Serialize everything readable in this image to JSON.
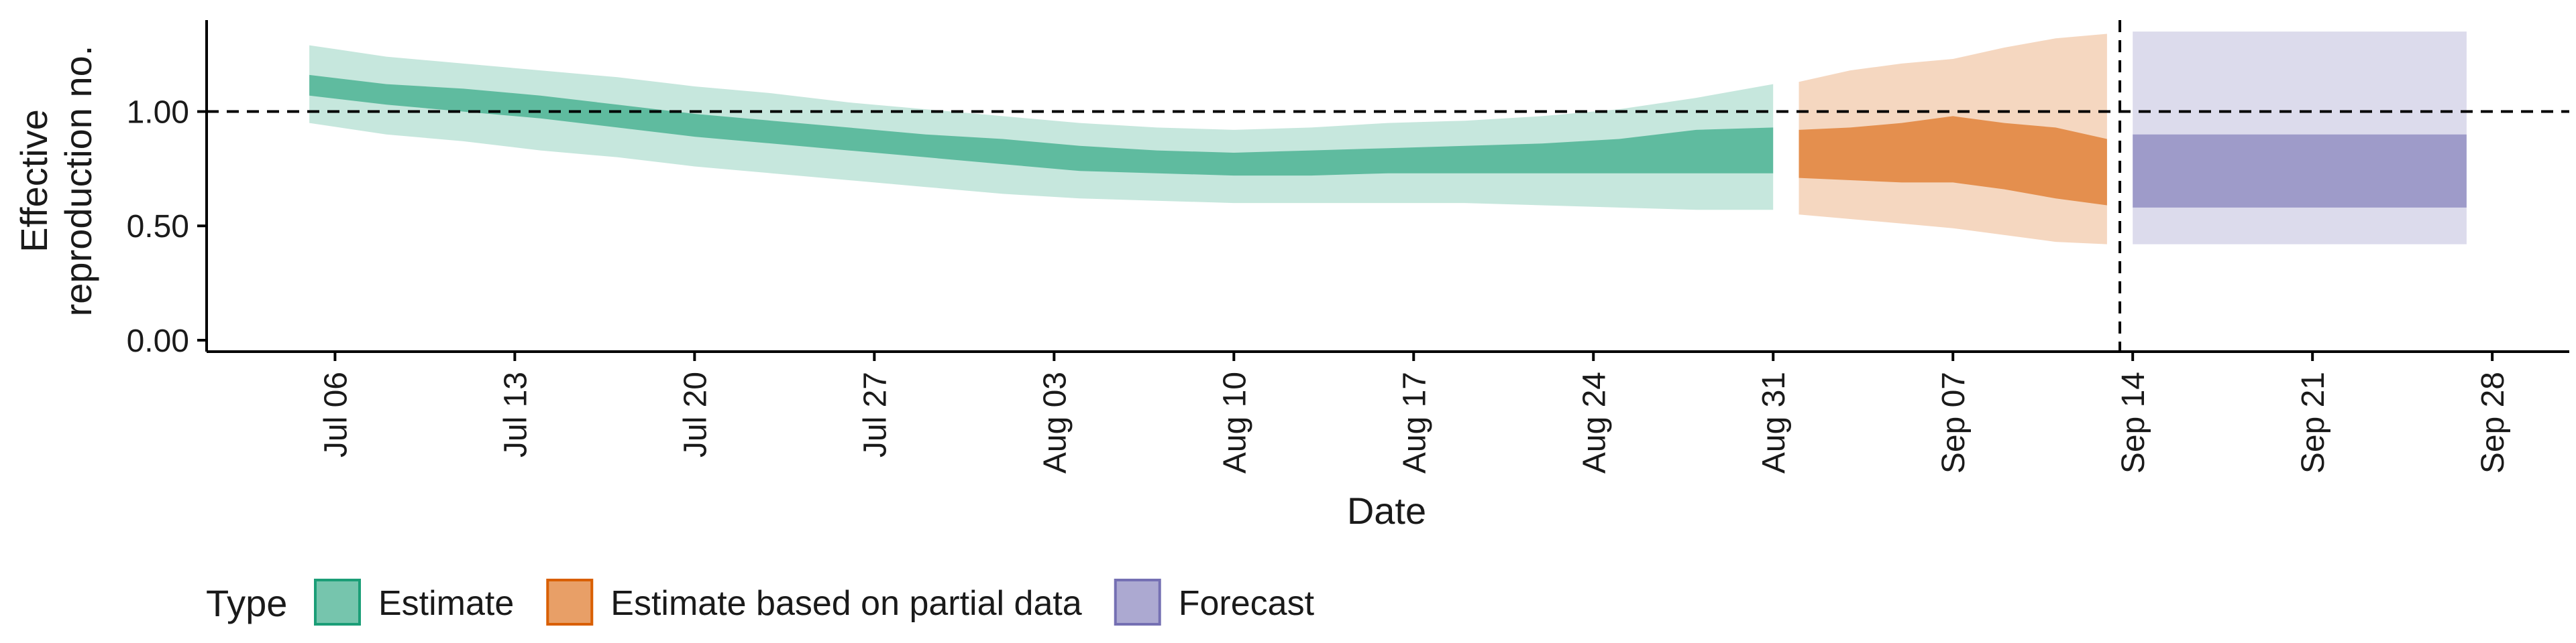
{
  "chart_data": {
    "type": "area",
    "xlabel": "Date",
    "ylabel_lines": [
      "Effective",
      "reproduction no."
    ],
    "yticks": [
      {
        "value": 0.0,
        "label": "0.00"
      },
      {
        "value": 0.5,
        "label": "0.50"
      },
      {
        "value": 1.0,
        "label": "1.00"
      }
    ],
    "ylim": [
      -0.05,
      1.4
    ],
    "xlim": [
      "2020-07-01",
      "2020-10-01"
    ],
    "xticks": [
      {
        "date": "2020-07-06",
        "label": "Jul 06"
      },
      {
        "date": "2020-07-13",
        "label": "Jul 13"
      },
      {
        "date": "2020-07-20",
        "label": "Jul 20"
      },
      {
        "date": "2020-07-27",
        "label": "Jul 27"
      },
      {
        "date": "2020-08-03",
        "label": "Aug 03"
      },
      {
        "date": "2020-08-10",
        "label": "Aug 10"
      },
      {
        "date": "2020-08-17",
        "label": "Aug 17"
      },
      {
        "date": "2020-08-24",
        "label": "Aug 24"
      },
      {
        "date": "2020-08-31",
        "label": "Aug 31"
      },
      {
        "date": "2020-09-07",
        "label": "Sep 07"
      },
      {
        "date": "2020-09-14",
        "label": "Sep 14"
      },
      {
        "date": "2020-09-21",
        "label": "Sep 21"
      },
      {
        "date": "2020-09-28",
        "label": "Sep 28"
      }
    ],
    "reference_line_y": 1.0,
    "vertical_line_date": "2020-09-13",
    "legend_title": "Type",
    "legend_position": "bottom",
    "series": [
      {
        "name": "Estimate",
        "color": "#1b9e77",
        "inner_opacity": 0.6,
        "outer_opacity": 0.25,
        "dates": [
          "2020-07-05",
          "2020-07-08",
          "2020-07-11",
          "2020-07-14",
          "2020-07-17",
          "2020-07-20",
          "2020-07-23",
          "2020-07-26",
          "2020-07-29",
          "2020-08-01",
          "2020-08-04",
          "2020-08-07",
          "2020-08-10",
          "2020-08-13",
          "2020-08-16",
          "2020-08-19",
          "2020-08-22",
          "2020-08-25",
          "2020-08-28",
          "2020-08-31"
        ],
        "outer_lower": [
          0.95,
          0.9,
          0.87,
          0.83,
          0.8,
          0.76,
          0.73,
          0.7,
          0.67,
          0.64,
          0.62,
          0.61,
          0.6,
          0.6,
          0.6,
          0.6,
          0.59,
          0.58,
          0.57,
          0.57
        ],
        "inner_lower": [
          1.07,
          1.03,
          1.0,
          0.97,
          0.93,
          0.89,
          0.86,
          0.83,
          0.8,
          0.77,
          0.74,
          0.73,
          0.72,
          0.72,
          0.73,
          0.73,
          0.73,
          0.73,
          0.73,
          0.73
        ],
        "inner_upper": [
          1.16,
          1.12,
          1.1,
          1.07,
          1.03,
          0.99,
          0.96,
          0.93,
          0.9,
          0.88,
          0.85,
          0.83,
          0.82,
          0.83,
          0.84,
          0.85,
          0.86,
          0.88,
          0.92,
          0.93
        ],
        "outer_upper": [
          1.29,
          1.24,
          1.21,
          1.18,
          1.15,
          1.11,
          1.08,
          1.04,
          1.01,
          0.98,
          0.95,
          0.93,
          0.92,
          0.93,
          0.95,
          0.96,
          0.98,
          1.01,
          1.06,
          1.12
        ]
      },
      {
        "name": "Estimate based on partial data",
        "color": "#d95f02",
        "inner_opacity": 0.6,
        "outer_opacity": 0.25,
        "dates": [
          "2020-09-01",
          "2020-09-03",
          "2020-09-05",
          "2020-09-07",
          "2020-09-09",
          "2020-09-11",
          "2020-09-13"
        ],
        "outer_lower": [
          0.55,
          0.53,
          0.51,
          0.49,
          0.46,
          0.43,
          0.42
        ],
        "inner_lower": [
          0.71,
          0.7,
          0.69,
          0.69,
          0.66,
          0.62,
          0.59
        ],
        "inner_upper": [
          0.92,
          0.93,
          0.95,
          0.98,
          0.95,
          0.93,
          0.88
        ],
        "outer_upper": [
          1.13,
          1.18,
          1.21,
          1.23,
          1.28,
          1.32,
          1.34
        ]
      },
      {
        "name": "Forecast",
        "color": "#7570b3",
        "inner_opacity": 0.6,
        "outer_opacity": 0.25,
        "dates": [
          "2020-09-14",
          "2020-09-27"
        ],
        "outer_lower": [
          0.42,
          0.42
        ],
        "inner_lower": [
          0.58,
          0.58
        ],
        "inner_upper": [
          0.9,
          0.9
        ],
        "outer_upper": [
          1.35,
          1.35
        ]
      }
    ]
  }
}
